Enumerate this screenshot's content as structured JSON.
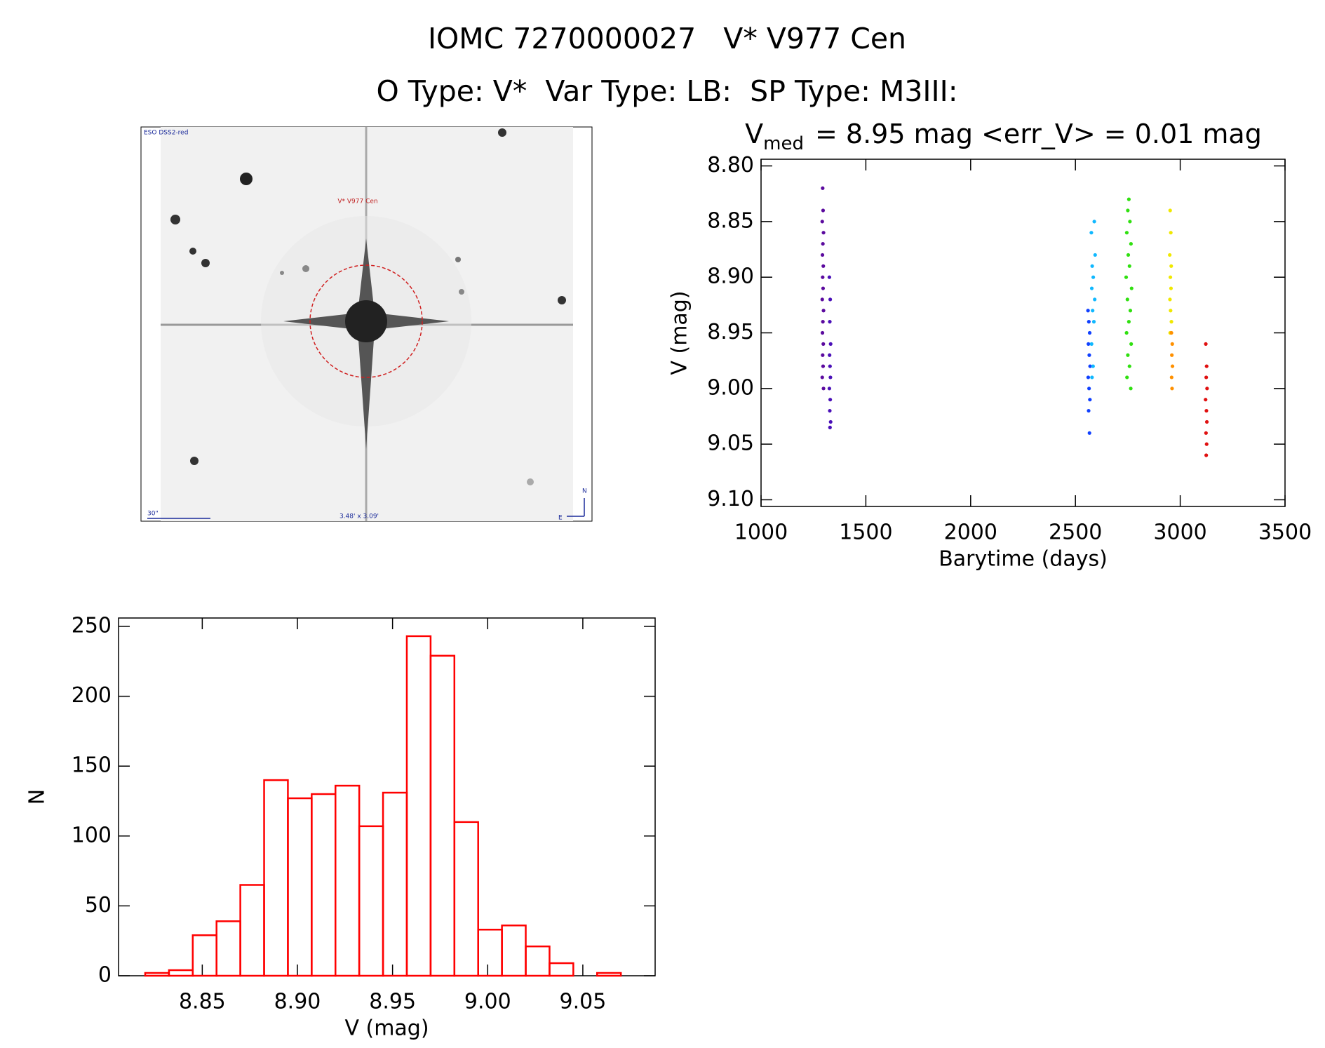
{
  "header": {
    "title": "IOMC 7270000027   V* V977 Cen",
    "subtitle": "O Type: V*  Var Type: LB:  SP Type: M3III:"
  },
  "image": {
    "survey": "ESO DSS2-red",
    "target": "V* V977 Cen",
    "scale": "30\"",
    "size": "3.48' x 3.09'",
    "north": "N",
    "east": "E"
  },
  "chart_data": [
    {
      "type": "scatter",
      "title": [
        "V",
        "med",
        "= 8.95 mag <err_V> = 0.01 mag"
      ],
      "xlabel": "Barytime (days)",
      "ylabel": "V (mag)",
      "xlim": [
        1000,
        3500
      ],
      "ylim": [
        9.106,
        8.794
      ],
      "xticks": [
        1000,
        1500,
        2000,
        2500,
        3000,
        3500
      ],
      "yticks": [
        {
          "value": 8.8,
          "label": "8.80"
        },
        {
          "value": 8.85,
          "label": "8.85"
        },
        {
          "value": 8.9,
          "label": "8.90"
        },
        {
          "value": 8.95,
          "label": "8.95"
        },
        {
          "value": 9.0,
          "label": "9.00"
        },
        {
          "value": 9.05,
          "label": "9.05"
        },
        {
          "value": 9.1,
          "label": "9.10"
        }
      ],
      "series": [
        {
          "color": "#5b0a9e",
          "x": [
            1294,
            1296,
            1292,
            1298,
            1295,
            1293,
            1297,
            1294,
            1296,
            1292,
            1298,
            1295,
            1293,
            1297,
            1294,
            1296,
            1292,
            1298
          ],
          "y": [
            8.82,
            8.84,
            8.85,
            8.86,
            8.87,
            8.88,
            8.89,
            8.9,
            8.91,
            8.92,
            8.93,
            8.94,
            8.95,
            8.96,
            8.97,
            8.98,
            8.99,
            9.0
          ]
        },
        {
          "color": "#4a10b8",
          "x": [
            1326,
            1330,
            1328,
            1332,
            1327,
            1329,
            1331,
            1326,
            1330,
            1328,
            1332,
            1329
          ],
          "y": [
            8.9,
            8.92,
            8.94,
            8.96,
            8.97,
            8.98,
            8.99,
            9.0,
            9.01,
            9.02,
            9.03,
            9.035
          ]
        },
        {
          "color": "#1040ff",
          "x": [
            2560,
            2564,
            2568,
            2562,
            2566,
            2570,
            2561,
            2565,
            2569,
            2563,
            2567
          ],
          "y": [
            8.93,
            8.94,
            8.95,
            8.96,
            8.97,
            8.98,
            8.99,
            9.0,
            9.01,
            9.02,
            9.04
          ]
        },
        {
          "color": "#10b8ff",
          "x": [
            2590,
            2576,
            2594,
            2580,
            2585,
            2578,
            2592,
            2582,
            2588,
            2577,
            2584,
            2579
          ],
          "y": [
            8.85,
            8.86,
            8.88,
            8.89,
            8.9,
            8.91,
            8.92,
            8.93,
            8.94,
            8.96,
            8.98,
            8.99
          ]
        },
        {
          "color": "#30e010",
          "x": [
            2755,
            2750,
            2760,
            2745,
            2765,
            2752,
            2758,
            2742,
            2768,
            2748,
            2762,
            2755,
            2744,
            2766,
            2750,
            2758,
            2746,
            2764
          ],
          "y": [
            8.83,
            8.84,
            8.85,
            8.86,
            8.87,
            8.88,
            8.89,
            8.9,
            8.91,
            8.92,
            8.93,
            8.94,
            8.95,
            8.96,
            8.97,
            8.98,
            8.99,
            9.0
          ]
        },
        {
          "color": "#f0e800",
          "x": [
            2952,
            2955,
            2950,
            2957,
            2953,
            2956,
            2951,
            2954,
            2958,
            2952
          ],
          "y": [
            8.84,
            8.86,
            8.88,
            8.89,
            8.9,
            8.91,
            8.92,
            8.93,
            8.94,
            8.95
          ]
        },
        {
          "color": "#ff9000",
          "x": [
            2958,
            2962,
            2960,
            2963,
            2959,
            2961
          ],
          "y": [
            8.95,
            8.96,
            8.97,
            8.98,
            8.99,
            9.0
          ]
        },
        {
          "color": "#e01010",
          "x": [
            3122,
            3126,
            3124,
            3128,
            3121,
            3125,
            3127,
            3123,
            3126,
            3124
          ],
          "y": [
            8.96,
            8.98,
            8.99,
            9.0,
            9.01,
            9.02,
            9.03,
            9.04,
            9.05,
            9.06
          ]
        }
      ]
    },
    {
      "type": "histogram",
      "xlabel": "V (mag)",
      "ylabel": "N",
      "color": "#ff0000",
      "bins": [
        8.82,
        8.8325,
        8.845,
        8.8575,
        8.87,
        8.8825,
        8.895,
        8.9075,
        8.92,
        8.9325,
        8.945,
        8.9575,
        8.97,
        8.9825,
        8.995,
        9.0075,
        9.02,
        9.0325,
        9.045,
        9.0575,
        9.07
      ],
      "values": [
        2,
        4,
        29,
        39,
        65,
        140,
        127,
        130,
        136,
        107,
        131,
        243,
        229,
        110,
        33,
        36,
        21,
        9,
        0,
        2
      ],
      "xlim": [
        8.806,
        9.088
      ],
      "ylim": [
        0,
        256
      ],
      "xticks": [
        {
          "value": 8.85,
          "label": "8.85"
        },
        {
          "value": 8.9,
          "label": "8.90"
        },
        8.95,
        {
          "value": 9.0,
          "label": "9.00"
        },
        9.05
      ],
      "yticks": [
        0,
        50,
        100,
        150,
        200,
        250
      ]
    }
  ]
}
